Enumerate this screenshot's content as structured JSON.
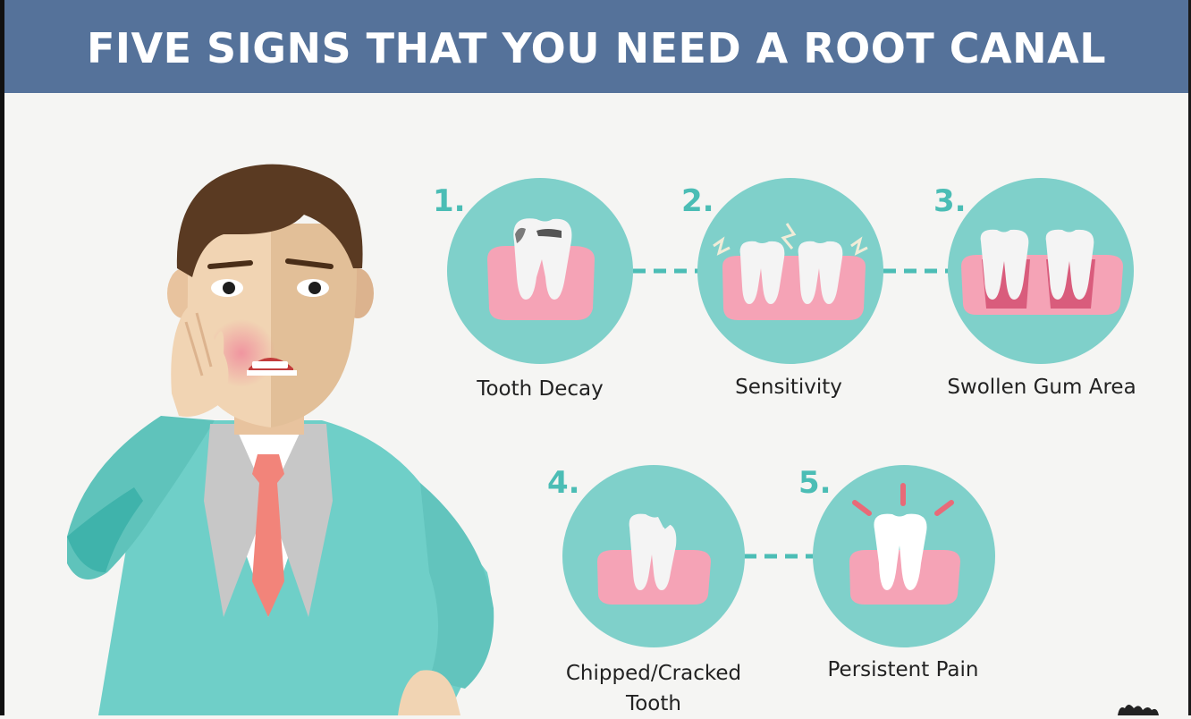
{
  "header": {
    "title": "FIVE SIGNS THAT YOU NEED A ROOT CANAL"
  },
  "colors": {
    "banner": "#55729a",
    "teal_circle": "#7fd0ca",
    "gum": "#f5a3b6",
    "tooth": "#f4f4f4",
    "step_number": "#4bbdb5",
    "suit": "#6fcfc8",
    "tie": "#f2847a",
    "hair": "#5a3a22",
    "skin": "#f1d4b3"
  },
  "steps": [
    {
      "number": "1.",
      "label": "Tooth Decay",
      "icon": "decayed-tooth-icon"
    },
    {
      "number": "2.",
      "label": "Sensitivity",
      "icon": "sensitive-teeth-icon"
    },
    {
      "number": "3.",
      "label": "Swollen Gum Area",
      "icon": "swollen-gum-icon"
    },
    {
      "number": "4.",
      "label_line1": "Chipped/Cracked",
      "label_line2": "Tooth",
      "icon": "chipped-tooth-icon"
    },
    {
      "number": "5.",
      "label": "Persistent Pain",
      "icon": "painful-tooth-icon"
    }
  ]
}
